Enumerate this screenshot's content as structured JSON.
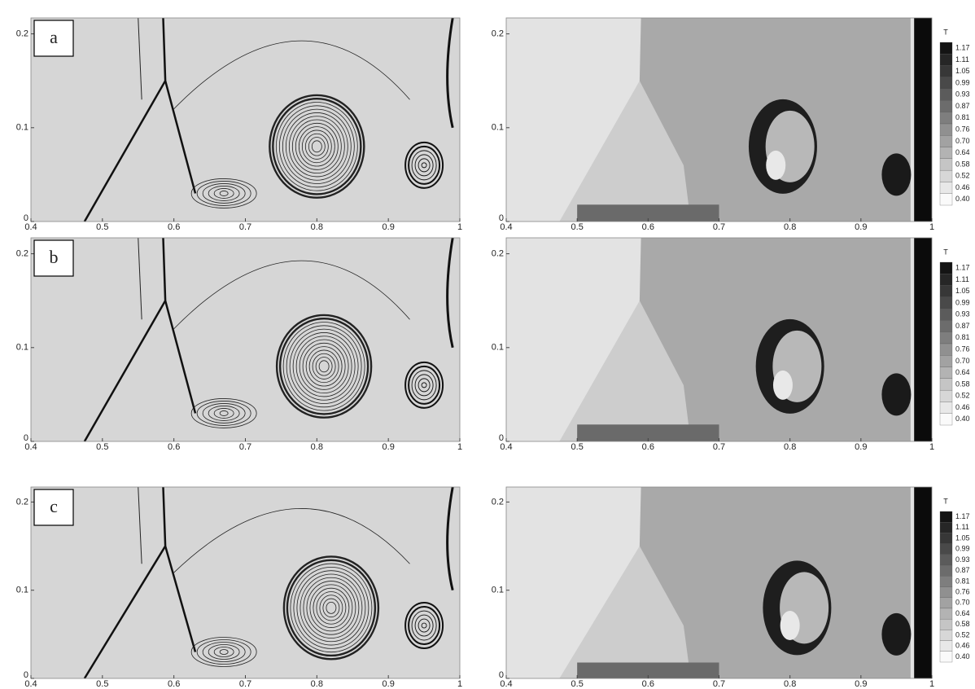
{
  "panels": [
    {
      "label": "a"
    },
    {
      "label": "b"
    },
    {
      "label": "c"
    }
  ],
  "x_ticks": [
    "0.4",
    "0.5",
    "0.6",
    "0.7",
    "0.8",
    "0.9",
    "1"
  ],
  "y_ticks": [
    "0",
    "0.1",
    "0.2"
  ],
  "colorbar": {
    "title": "T",
    "labels": [
      "1.17",
      "1.11",
      "1.05",
      "0.99",
      "0.93",
      "0.87",
      "0.81",
      "0.76",
      "0.70",
      "0.64",
      "0.58",
      "0.52",
      "0.46",
      "0.40"
    ]
  }
}
